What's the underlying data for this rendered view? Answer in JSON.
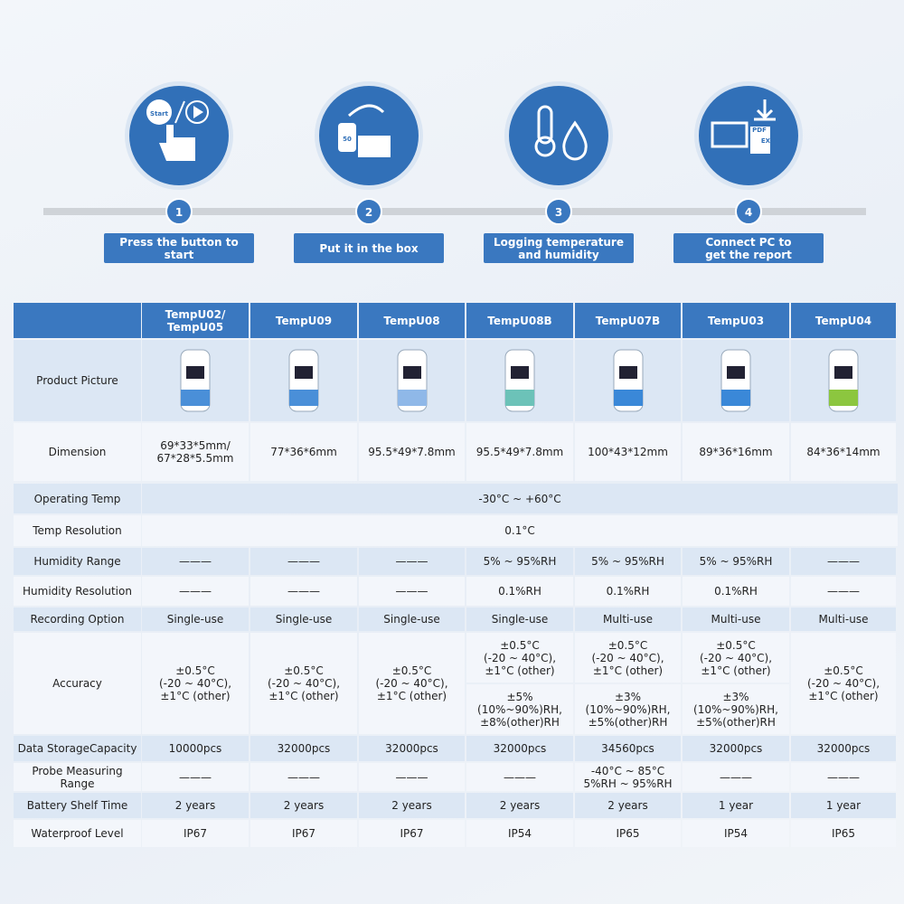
{
  "steps": [
    {
      "number": "1",
      "label": "Press the button to start",
      "icon_text": [
        "Start"
      ]
    },
    {
      "number": "2",
      "label": "Put it in the box",
      "icon_text": [
        "50"
      ]
    },
    {
      "number": "3",
      "label": "Logging temperature\nand humidity",
      "icon_text": []
    },
    {
      "number": "4",
      "label": "Connect PC to\nget the report",
      "icon_text": [
        "PDF",
        "EXCEL"
      ]
    }
  ],
  "table": {
    "headers": [
      "TempU02/\nTempU05",
      "TempU09",
      "TempU08",
      "TempU08B",
      "TempU07B",
      "TempU03",
      "TempU04"
    ],
    "rows": [
      {
        "label": "Product Picture"
      },
      {
        "label": "Dimension",
        "cells": [
          "69*33*5mm/\n67*28*5.5mm",
          "77*36*6mm",
          "95.5*49*7.8mm",
          "95.5*49*7.8mm",
          "100*43*12mm",
          "89*36*16mm",
          "84*36*14mm"
        ]
      },
      {
        "label": "Operating Temp",
        "cells": [
          "-30°C ~ +60°C"
        ]
      },
      {
        "label": "Temp Resolution",
        "cells": [
          "0.1°C"
        ]
      },
      {
        "label": "Humidity Range",
        "cells": [
          "———",
          "———",
          "———",
          "5% ~ 95%RH",
          "5% ~ 95%RH",
          "5% ~ 95%RH",
          "———"
        ]
      },
      {
        "label": "Humidity Resolution",
        "cells": [
          "———",
          "———",
          "———",
          "0.1%RH",
          "0.1%RH",
          "0.1%RH",
          "———"
        ]
      },
      {
        "label": "Recording Option",
        "cells": [
          "Single-use",
          "Single-use",
          "Single-use",
          "Single-use",
          "Multi-use",
          "Multi-use",
          "Multi-use"
        ]
      },
      {
        "label": "Accuracy",
        "cells": [
          "±0.5°C\n(-20 ~ 40°C),\n±1°C (other)",
          "±0.5°C\n(-20 ~ 40°C),\n±1°C (other)",
          "±0.5°C\n(-20 ~ 40°C),\n±1°C (other)",
          [
            "±0.5°C\n(-20 ~ 40°C),\n±1°C (other)",
            "±5%\n(10%~90%)RH,\n±8%(other)RH"
          ],
          [
            "±0.5°C\n(-20 ~ 40°C),\n±1°C (other)",
            "±3%\n(10%~90%)RH,\n±5%(other)RH"
          ],
          [
            "±0.5°C\n(-20 ~ 40°C),\n±1°C (other)",
            "±3%\n(10%~90%)RH,\n±5%(other)RH"
          ],
          "±0.5°C\n(-20 ~ 40°C),\n±1°C (other)"
        ]
      },
      {
        "label": "Data StorageCapacity",
        "cells": [
          "10000pcs",
          "32000pcs",
          "32000pcs",
          "32000pcs",
          "34560pcs",
          "32000pcs",
          "32000pcs"
        ]
      },
      {
        "label": "Probe Measuring\nRange",
        "cells": [
          "———",
          "———",
          "———",
          "———",
          "-40°C ~ 85°C\n5%RH ~ 95%RH",
          "———",
          "———"
        ]
      },
      {
        "label": "Battery Shelf Time",
        "cells": [
          "2 years",
          "2 years",
          "2 years",
          "2 years",
          "2 years",
          "1 year",
          "1 year"
        ]
      },
      {
        "label": "Waterproof Level",
        "cells": [
          "IP67",
          "IP67",
          "IP67",
          "IP54",
          "IP65",
          "IP54",
          "IP65"
        ]
      }
    ]
  }
}
